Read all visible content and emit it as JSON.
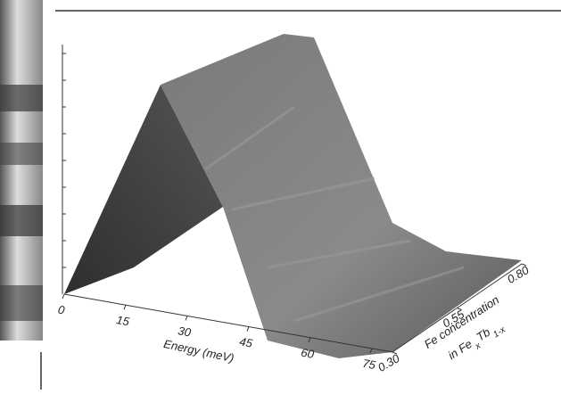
{
  "chart_data": {
    "type": "surface",
    "xlabel": "Energy (meV)",
    "xlim": [
      0,
      80
    ],
    "xticks": [
      0,
      15,
      30,
      45,
      60,
      75
    ],
    "ylabel_line1": "Fe concentration",
    "ylabel_line2": [
      "in Fe",
      "x",
      "Tb",
      "1-x"
    ],
    "ylim": [
      0.3,
      0.8
    ],
    "yticks": [
      {
        "value": 0.3,
        "label": "0.30"
      },
      {
        "value": 0.55,
        "label": "0.55"
      },
      {
        "value": 0.8,
        "label": "0.80"
      }
    ],
    "color": "#6e6e6e"
  }
}
